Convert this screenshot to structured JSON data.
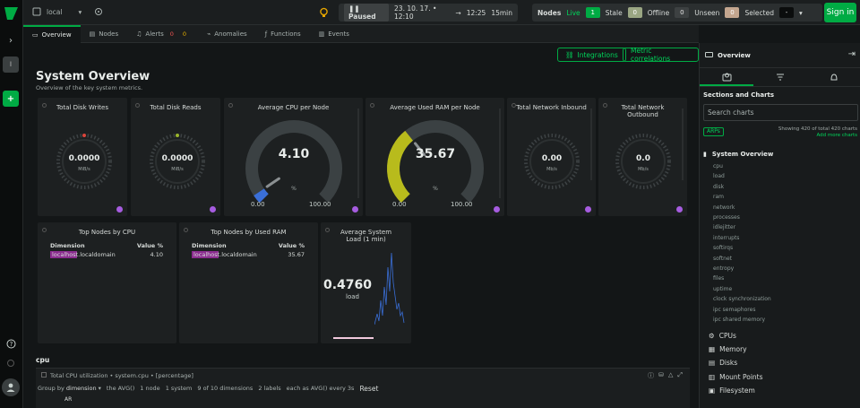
{
  "topbar": {
    "space": "local",
    "playback": "Paused",
    "time_from": "23. 10. 17. • 12:10",
    "time_to": "12:25",
    "duration": "15min",
    "nodes_label": "Nodes",
    "live_label": "Live",
    "live_count": "1",
    "stale_label": "Stale",
    "stale_count": "0",
    "offline_label": "Offline",
    "offline_count": "0",
    "unseen_label": "Unseen",
    "unseen_count": "0",
    "selected_label": "Selected",
    "selected_value": "-",
    "signin_label": "Sign in"
  },
  "rail": {
    "badge": "l"
  },
  "tabs": [
    {
      "label": "Overview"
    },
    {
      "label": "Nodes"
    },
    {
      "label": "Alerts",
      "red": "0",
      "yellow": "0"
    },
    {
      "label": "Anomalies"
    },
    {
      "label": "Functions"
    },
    {
      "label": "Events"
    }
  ],
  "main": {
    "integrations_label": "Integrations",
    "metric_correlations_label": "Metric correlations",
    "title": "System Overview",
    "subtitle": "Overview of the key system metrics."
  },
  "cards": {
    "disk_writes": {
      "title": "Total Disk Writes",
      "value": "0.0000",
      "unit": "MiB/s"
    },
    "disk_reads": {
      "title": "Total Disk Reads",
      "value": "0.0000",
      "unit": "MiB/s"
    },
    "cpu": {
      "title": "Average CPU per Node",
      "value": "4.10",
      "fill": 0.041,
      "unit": "%",
      "min": "0.00",
      "max": "100.00"
    },
    "ram": {
      "title": "Average Used RAM per Node",
      "value": "35.67",
      "fill": 0.3567,
      "unit": "%",
      "min": "0.00",
      "max": "100.00"
    },
    "net_in": {
      "title": "Total Network Inbound",
      "value": "0.00",
      "unit": "Mb/s"
    },
    "net_out": {
      "title": "Total Network Outbound",
      "value": "0.0",
      "unit": "Mb/s"
    },
    "top_cpu": {
      "title": "Top Nodes by CPU",
      "col1": "Dimension",
      "col2": "Value %",
      "name": "localhost.localdomain",
      "value": "4.10"
    },
    "top_ram": {
      "title": "Top Nodes by Used RAM",
      "col1": "Dimension",
      "col2": "Value %",
      "name": "localhost.localdomain",
      "value": "35.67"
    },
    "load": {
      "title": "Average System Load (1 min)",
      "value": "0.4760",
      "unit": "load"
    }
  },
  "cpu_section": {
    "heading": "cpu",
    "chart_title": "Total CPU utilization • system.cpu • [percentage]",
    "group_by_label": "Group by",
    "group_by": "dimension",
    "agg": "the AVG()",
    "nodes": "1 node",
    "system": "1 system",
    "dims": "9 of 10 dimensions",
    "labels": "2 labels",
    "each_as": "each as AVG() every 3s",
    "reset": "Reset",
    "axis_label": "AR"
  },
  "right": {
    "title": "Overview",
    "sections_label": "Sections and Charts",
    "search_placeholder": "Search charts",
    "arp": "ARPs",
    "showing": "Showing 420 of total 420 charts",
    "add_more": "Add more charts",
    "toc_head": "System Overview",
    "toc_items": [
      "cpu",
      "load",
      "disk",
      "ram",
      "network",
      "processes",
      "idlejitter",
      "interrupts",
      "softirqs",
      "softnet",
      "entropy",
      "files",
      "uptime",
      "clock synchronization",
      "ipc semaphores",
      "ipc shared memory"
    ],
    "sections": [
      "CPUs",
      "Memory",
      "Disks",
      "Mount Points",
      "Filesystem"
    ]
  }
}
